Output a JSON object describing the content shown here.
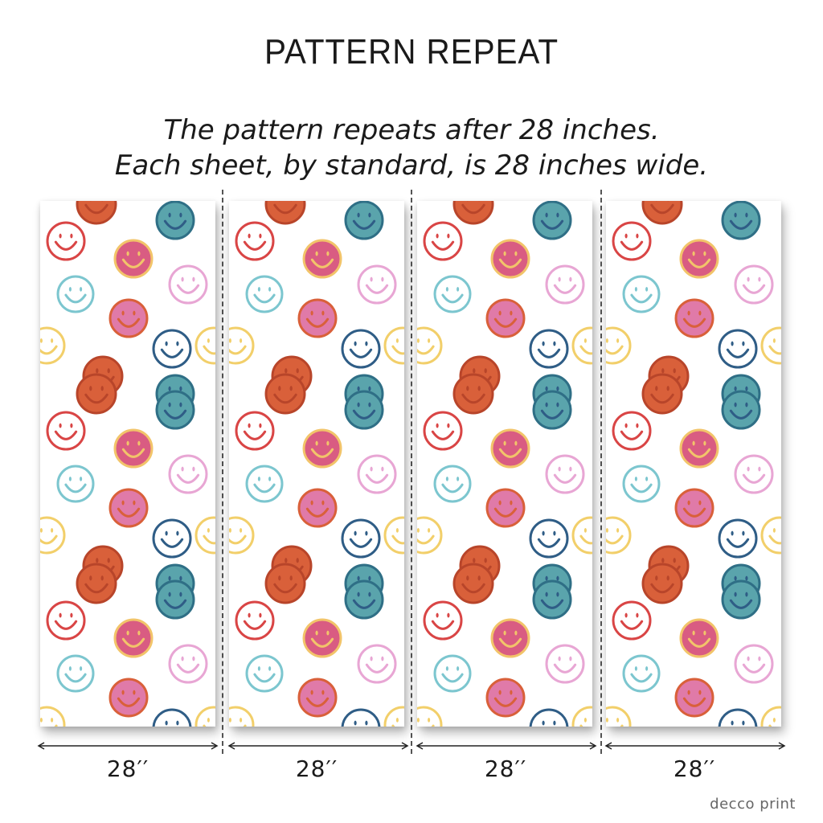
{
  "title": "PATTERN REPEAT",
  "subtitle_lines": [
    "The pattern repeats after 28 inches.",
    "Each sheet, by standard, is 28 inches wide."
  ],
  "sheets": [
    {
      "width_label": "28′′"
    },
    {
      "width_label": "28′′"
    },
    {
      "width_label": "28′′"
    },
    {
      "width_label": "28′′"
    }
  ],
  "brand": "decco print",
  "colors": {
    "background": "#ffffff",
    "divider": "#555555",
    "smiley_red_outline": "#d94545",
    "smiley_orange_fill": "#d9603a",
    "smiley_teal_fill": "#5aa4ac",
    "smiley_navy_outline": "#2f5d86",
    "smiley_pink_fill": "#e07aa8",
    "smiley_rose_fill": "#d95c82",
    "smiley_yellow_outline": "#f2cf6a",
    "smiley_lightblue_outline": "#7cc6cf",
    "smiley_lightpink_outline": "#e8a6d4"
  },
  "pattern_motif": "smiley-face-icon"
}
